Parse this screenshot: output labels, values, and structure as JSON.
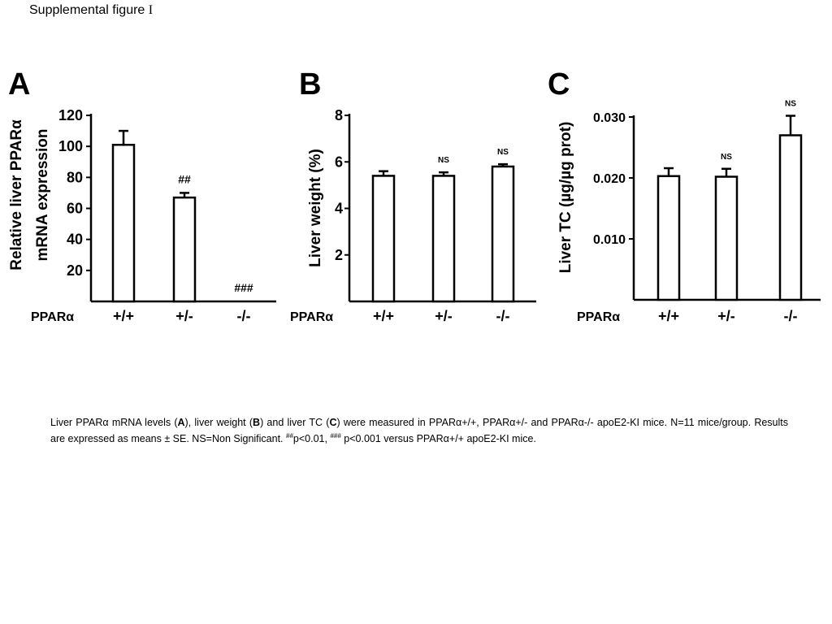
{
  "figure": {
    "title": "Supplemental figure",
    "title_numeral": "I"
  },
  "panels": [
    {
      "letter": "A"
    },
    {
      "letter": "B"
    },
    {
      "letter": "C"
    }
  ],
  "chart_data": [
    {
      "type": "bar",
      "panel": "A",
      "categories": [
        "+/+",
        "+/-",
        "-/-"
      ],
      "group_label": "PPARα",
      "ylabel_lines": [
        "Relative liver PPARα",
        "mRNA expression"
      ],
      "values": [
        101,
        67,
        0
      ],
      "errors": [
        9,
        3,
        0
      ],
      "yticks": [
        20,
        40,
        60,
        80,
        100,
        120
      ],
      "ytick_labels": [
        "20",
        "40",
        "60",
        "80",
        "100",
        "120"
      ],
      "ylim": [
        0,
        120
      ],
      "annotations": [
        "",
        "##",
        "###"
      ],
      "bar_color": "#ffffff",
      "edge_color": "#000000"
    },
    {
      "type": "bar",
      "panel": "B",
      "categories": [
        "+/+",
        "+/-",
        "-/-"
      ],
      "group_label": "PPARα",
      "ylabel_lines": [
        "Liver weight (%)"
      ],
      "values": [
        5.4,
        5.4,
        5.8
      ],
      "errors": [
        0.2,
        0.15,
        0.1
      ],
      "yticks": [
        2,
        4,
        6,
        8
      ],
      "ytick_labels": [
        "2",
        "4",
        "6",
        "8"
      ],
      "ylim": [
        0,
        8
      ],
      "annotations": [
        "",
        "NS",
        "NS"
      ],
      "bar_color": "#ffffff",
      "edge_color": "#000000"
    },
    {
      "type": "bar",
      "panel": "C",
      "categories": [
        "+/+",
        "+/-",
        "-/-"
      ],
      "group_label": "PPARα",
      "ylabel_lines": [
        "Liver TC (µg/µg prot)"
      ],
      "values": [
        0.0203,
        0.0202,
        0.027
      ],
      "errors": [
        0.0013,
        0.0013,
        0.0032
      ],
      "yticks": [
        0.01,
        0.02,
        0.03
      ],
      "ytick_labels": [
        "0.010",
        "0.020",
        "0.030"
      ],
      "ylim": [
        0,
        0.03
      ],
      "annotations": [
        "",
        "NS",
        "NS"
      ],
      "bar_color": "#ffffff",
      "edge_color": "#000000"
    }
  ],
  "caption": {
    "t1": "Liver PPARα mRNA levels (",
    "b1": "A",
    "t2": "), liver weight (",
    "b2": "B",
    "t3": ") and liver TC (",
    "b3": "C",
    "t4": ") were measured in PPARα+/+, PPARα+/- and PPARα-/- apoE2-KI mice. N=11 mice/group. Results are expressed as means ± SE. NS=Non Significant. ",
    "s1": "##",
    "t5": "p<0.01, ",
    "s2": "###",
    "t6": " p<0.001 versus PPARα+/+ apoE2-KI mice."
  }
}
